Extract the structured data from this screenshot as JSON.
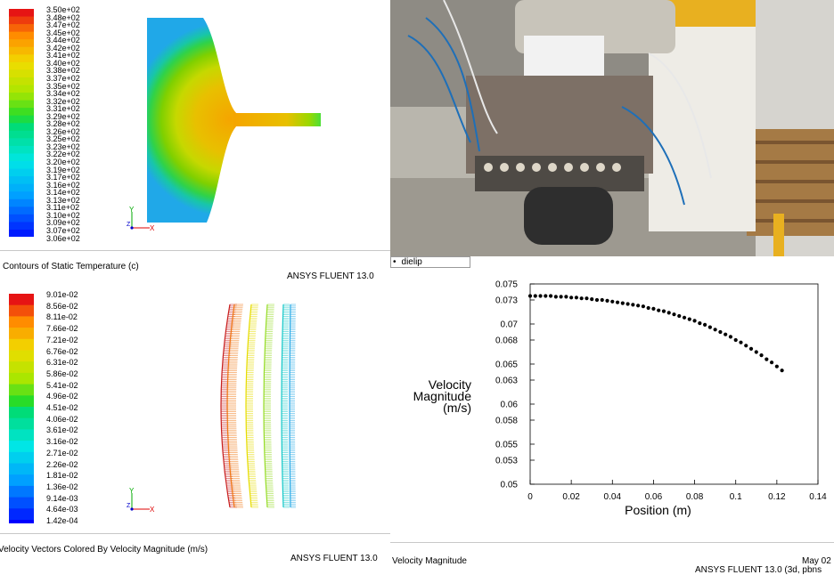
{
  "panels": {
    "temperature": {
      "legend_values": [
        "3.50e+02",
        "3.48e+02",
        "3.47e+02",
        "3.45e+02",
        "3.44e+02",
        "3.42e+02",
        "3.41e+02",
        "3.40e+02",
        "3.38e+02",
        "3.37e+02",
        "3.35e+02",
        "3.34e+02",
        "3.32e+02",
        "3.31e+02",
        "3.29e+02",
        "3.28e+02",
        "3.26e+02",
        "3.25e+02",
        "3.23e+02",
        "3.22e+02",
        "3.20e+02",
        "3.19e+02",
        "3.17e+02",
        "3.16e+02",
        "3.14e+02",
        "3.13e+02",
        "3.11e+02",
        "3.10e+02",
        "3.09e+02",
        "3.07e+02",
        "3.06e+02"
      ],
      "caption": "Contours of Static Temperature (c)",
      "brand": "ANSYS FLUENT 13.0"
    },
    "velocity_vectors": {
      "legend_values": [
        "9.01e-02",
        "8.56e-02",
        "8.11e-02",
        "7.66e-02",
        "7.21e-02",
        "6.76e-02",
        "6.31e-02",
        "5.86e-02",
        "5.41e-02",
        "4.96e-02",
        "4.51e-02",
        "4.06e-02",
        "3.61e-02",
        "3.16e-02",
        "2.71e-02",
        "2.26e-02",
        "1.81e-02",
        "1.36e-02",
        "9.14e-03",
        "4.64e-03",
        "1.42e-04"
      ],
      "caption": "Velocity Vectors Colored By Velocity Magnitude (m/s)",
      "brand": "ANSYS FLUENT 13.0"
    },
    "photo": {
      "description_icon": "extrusion-die-photo"
    },
    "xy_plot": {
      "legend_entry": "dielip",
      "caption": "Velocity Magnitude",
      "footer_date": "May 02",
      "footer_brand": "ANSYS FLUENT 13.0 (3d, pbns"
    }
  },
  "chart_data": {
    "type": "scatter",
    "series": [
      {
        "name": "dielip",
        "x": [
          0.0,
          0.0025,
          0.005,
          0.0075,
          0.01,
          0.0125,
          0.015,
          0.0175,
          0.02,
          0.0225,
          0.025,
          0.0275,
          0.03,
          0.0325,
          0.035,
          0.0375,
          0.04,
          0.0425,
          0.045,
          0.0475,
          0.05,
          0.0525,
          0.055,
          0.0575,
          0.06,
          0.0625,
          0.065,
          0.0675,
          0.07,
          0.0725,
          0.075,
          0.0775,
          0.08,
          0.0825,
          0.085,
          0.0875,
          0.09,
          0.0925,
          0.095,
          0.0975,
          0.1,
          0.1025,
          0.105,
          0.1075,
          0.11,
          0.1125,
          0.115,
          0.1175,
          0.12,
          0.1225
        ],
        "y": [
          0.0735,
          0.0735,
          0.0735,
          0.0735,
          0.0735,
          0.0734,
          0.0734,
          0.0734,
          0.0733,
          0.0733,
          0.0732,
          0.0732,
          0.0731,
          0.073,
          0.073,
          0.0729,
          0.0728,
          0.0727,
          0.0726,
          0.0725,
          0.0724,
          0.0723,
          0.0722,
          0.072,
          0.0719,
          0.0717,
          0.0716,
          0.0714,
          0.0712,
          0.071,
          0.0708,
          0.0706,
          0.0704,
          0.0701,
          0.0699,
          0.0696,
          0.0693,
          0.069,
          0.0687,
          0.0684,
          0.068,
          0.0677,
          0.0673,
          0.0669,
          0.0665,
          0.0661,
          0.0656,
          0.0652,
          0.0647,
          0.0642
        ]
      }
    ],
    "xlabel": "Position (m)",
    "ylabel": [
      "Velocity",
      "Magnitude",
      "(m/s)"
    ],
    "xlim": [
      0,
      0.14
    ],
    "ylim": [
      0.05,
      0.075
    ],
    "xticks": [
      "0",
      "0.02",
      "0.04",
      "0.06",
      "0.08",
      "0.1",
      "0.12",
      "0.14"
    ],
    "yticks": [
      "0.05",
      "0.053",
      "0.055",
      "0.058",
      "0.06",
      "0.063",
      "0.065",
      "0.068",
      "0.07",
      "0.073",
      "0.075"
    ],
    "legend_placement": "top-left",
    "grid": false
  }
}
